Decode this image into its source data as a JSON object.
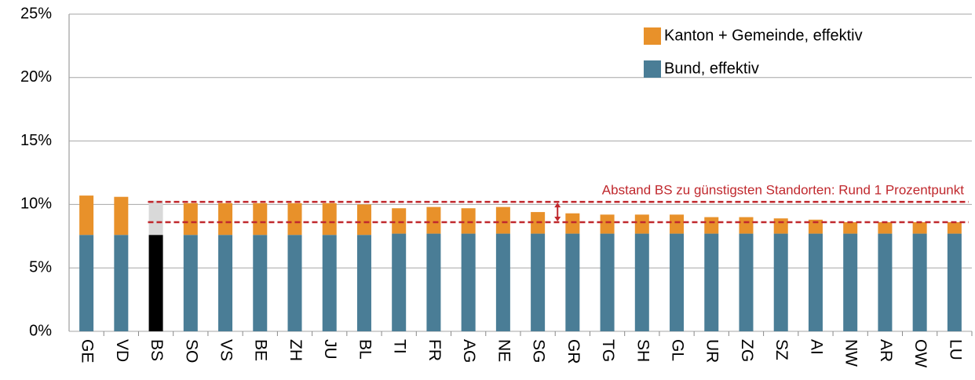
{
  "chart_data": {
    "type": "stacked_bar",
    "categories": [
      "GE",
      "VD",
      "BS",
      "SO",
      "VS",
      "BE",
      "ZH",
      "JU",
      "BL",
      "TI",
      "FR",
      "AG",
      "NE",
      "SG",
      "GR",
      "TG",
      "SH",
      "GL",
      "UR",
      "ZG",
      "SZ",
      "AI",
      "NW",
      "AR",
      "OW",
      "LU"
    ],
    "series": [
      {
        "name": "Bund, effektiv",
        "color": "#4a7d96",
        "highlight_color": "#000000",
        "values": [
          7.6,
          7.6,
          7.6,
          7.6,
          7.6,
          7.6,
          7.6,
          7.6,
          7.6,
          7.7,
          7.7,
          7.7,
          7.7,
          7.7,
          7.7,
          7.7,
          7.7,
          7.7,
          7.7,
          7.7,
          7.7,
          7.7,
          7.7,
          7.7,
          7.7,
          7.7
        ]
      },
      {
        "name": "Kanton + Gemeinde, effektiv",
        "color": "#e8912a",
        "highlight_color": "#d9d9d9",
        "values": [
          3.1,
          3.0,
          2.7,
          2.5,
          2.5,
          2.5,
          2.5,
          2.5,
          2.4,
          2.0,
          2.1,
          2.0,
          2.1,
          1.7,
          1.6,
          1.5,
          1.5,
          1.5,
          1.3,
          1.3,
          1.2,
          1.1,
          0.9,
          0.9,
          0.9,
          0.9
        ]
      }
    ],
    "highlight": "BS",
    "ylim": [
      0,
      25
    ],
    "yticks": [
      {
        "value": 0,
        "label": "0%"
      },
      {
        "value": 5,
        "label": "5%"
      },
      {
        "value": 10,
        "label": "10%"
      },
      {
        "value": 15,
        "label": "15%"
      },
      {
        "value": 20,
        "label": "20%"
      },
      {
        "value": 25,
        "label": "25%"
      }
    ],
    "grid": true,
    "legend": "upper right",
    "reference_lines": {
      "values": [
        10.2,
        8.6
      ],
      "color": "#c0282d"
    },
    "annotation": "Abstand BS zu günstigsten Standorten: Rund 1 Prozentpunkt"
  }
}
